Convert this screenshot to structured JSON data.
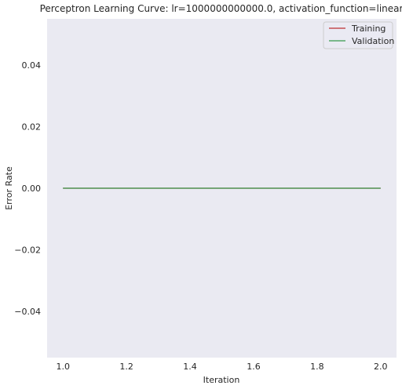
{
  "chart_data": {
    "type": "line",
    "title": "Perceptron Learning Curve: lr=1000000000000.0, activation_function=linear",
    "xlabel": "Iteration",
    "ylabel": "Error Rate",
    "xlim": [
      0.95,
      2.05
    ],
    "ylim": [
      -0.055,
      0.055
    ],
    "xticks": [
      1.0,
      1.2,
      1.4,
      1.6,
      1.8,
      2.0
    ],
    "xtick_labels": [
      "1.0",
      "1.2",
      "1.4",
      "1.6",
      "1.8",
      "2.0"
    ],
    "yticks": [
      -0.04,
      -0.02,
      0.0,
      0.02,
      0.04
    ],
    "ytick_labels": [
      "−0.04",
      "−0.02",
      "0.00",
      "0.02",
      "0.04"
    ],
    "grid": false,
    "legend_position": "upper right",
    "background_color": "#eaeaf2",
    "series": [
      {
        "name": "Training",
        "color": "#c44e52",
        "x": [
          1,
          2
        ],
        "y": [
          0.0,
          0.0
        ]
      },
      {
        "name": "Validation",
        "color": "#55a868",
        "x": [
          1,
          2
        ],
        "y": [
          0.0,
          0.0
        ]
      }
    ]
  }
}
